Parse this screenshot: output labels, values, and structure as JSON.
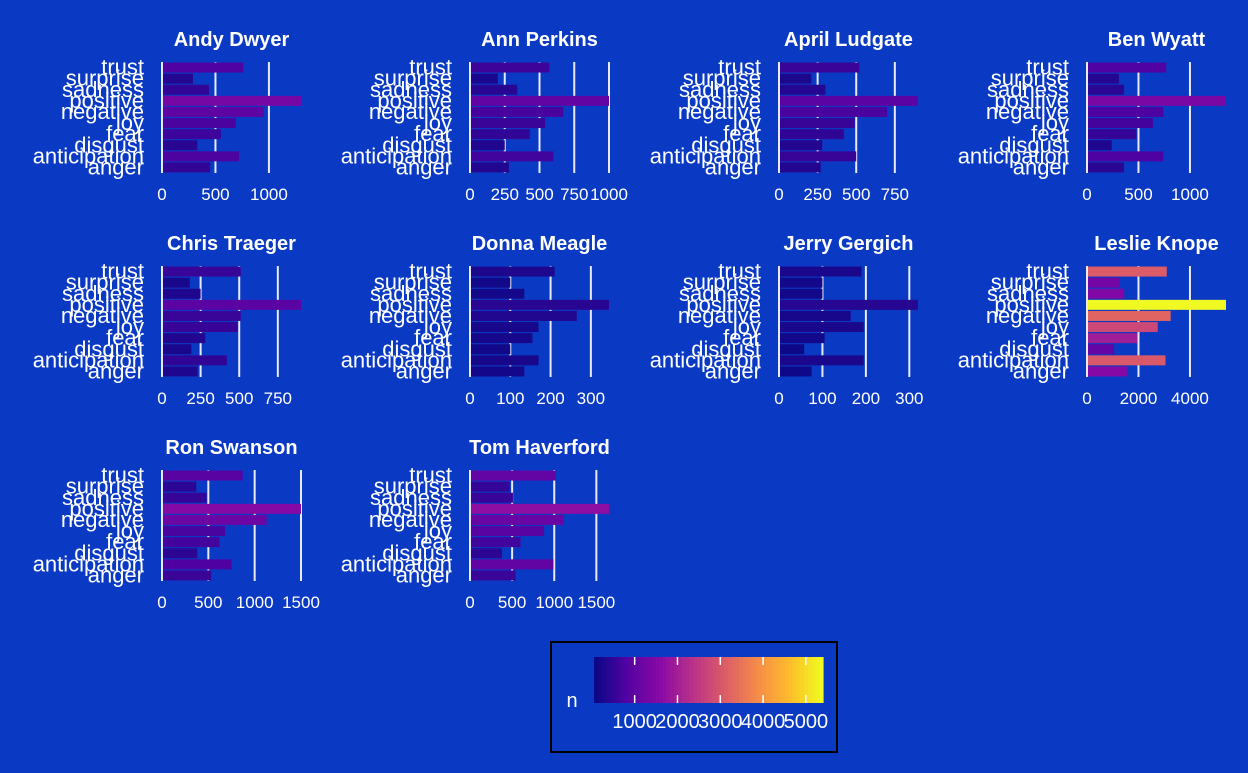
{
  "chart_data": {
    "type": "bar",
    "orientation": "horizontal",
    "faceted": true,
    "background_color": "#0A3AC4",
    "gridline_color": "#E8EAF6",
    "text_color": "#FFFFFF",
    "color_scale": "plasma",
    "color_min": 50,
    "color_max": 5400,
    "categories": [
      "trust",
      "surprise",
      "sadness",
      "positive",
      "negative",
      "joy",
      "fear",
      "disgust",
      "anticipation",
      "anger"
    ],
    "legend": {
      "title": "n",
      "ticks": [
        1000,
        2000,
        3000,
        4000,
        5000
      ],
      "tick_labels": [
        "1000",
        "2000",
        "3000",
        "4000",
        "5000"
      ]
    },
    "panels": [
      {
        "title": "Andy Dwyer",
        "xlim": [
          0,
          1300
        ],
        "ticks": [
          0,
          500,
          1000
        ],
        "tick_labels": [
          "0",
          "500",
          "1000"
        ],
        "values": [
          760,
          290,
          440,
          1300,
          950,
          690,
          550,
          330,
          720,
          450
        ]
      },
      {
        "title": "Ann Perkins",
        "xlim": [
          0,
          1000
        ],
        "ticks": [
          0,
          250,
          500,
          750,
          1000
        ],
        "tick_labels": [
          "0",
          "250",
          "500",
          "750",
          "1000"
        ],
        "values": [
          570,
          200,
          340,
          1000,
          670,
          540,
          430,
          250,
          600,
          280
        ]
      },
      {
        "title": "April Ludgate",
        "xlim": [
          0,
          900
        ],
        "ticks": [
          0,
          250,
          500,
          750
        ],
        "tick_labels": [
          "0",
          "250",
          "500",
          "750"
        ],
        "values": [
          520,
          210,
          300,
          900,
          700,
          490,
          420,
          280,
          500,
          270
        ]
      },
      {
        "title": "Ben Wyatt",
        "xlim": [
          0,
          1350
        ],
        "ticks": [
          0,
          500,
          1000
        ],
        "tick_labels": [
          "0",
          "500",
          "1000"
        ],
        "values": [
          770,
          310,
          360,
          1350,
          740,
          640,
          480,
          240,
          740,
          360
        ]
      },
      {
        "title": "Chris Traeger",
        "xlim": [
          0,
          900
        ],
        "ticks": [
          0,
          250,
          500,
          750
        ],
        "tick_labels": [
          "0",
          "250",
          "500",
          "750"
        ],
        "values": [
          510,
          180,
          250,
          900,
          510,
          490,
          280,
          190,
          420,
          230
        ]
      },
      {
        "title": "Donna Meagle",
        "xlim": [
          0,
          345
        ],
        "ticks": [
          0,
          100,
          200,
          300
        ],
        "tick_labels": [
          "0",
          "100",
          "200",
          "300"
        ],
        "values": [
          210,
          100,
          135,
          345,
          265,
          170,
          155,
          100,
          170,
          135
        ]
      },
      {
        "title": "Jerry Gergich",
        "xlim": [
          0,
          320
        ],
        "ticks": [
          0,
          100,
          200,
          300
        ],
        "tick_labels": [
          "0",
          "100",
          "200",
          "300"
        ],
        "values": [
          190,
          100,
          100,
          320,
          165,
          195,
          105,
          58,
          195,
          75
        ]
      },
      {
        "title": "Leslie Knope",
        "xlim": [
          0,
          5400
        ],
        "ticks": [
          0,
          2000,
          4000
        ],
        "tick_labels": [
          "0",
          "2000",
          "4000"
        ],
        "values": [
          3100,
          1250,
          1450,
          5400,
          3250,
          2750,
          1950,
          1050,
          3050,
          1550
        ]
      },
      {
        "title": "Ron Swanson",
        "xlim": [
          0,
          1500
        ],
        "ticks": [
          0,
          500,
          1000,
          1500
        ],
        "tick_labels": [
          "0",
          "500",
          "1000",
          "1500"
        ],
        "values": [
          870,
          370,
          480,
          1500,
          1130,
          680,
          620,
          380,
          750,
          530
        ]
      },
      {
        "title": "Tom Haverford",
        "xlim": [
          0,
          1650
        ],
        "ticks": [
          0,
          500,
          1000,
          1500
        ],
        "tick_labels": [
          "0",
          "500",
          "1000",
          "1500"
        ],
        "values": [
          1020,
          470,
          510,
          1650,
          1110,
          880,
          600,
          380,
          990,
          540
        ]
      }
    ]
  }
}
